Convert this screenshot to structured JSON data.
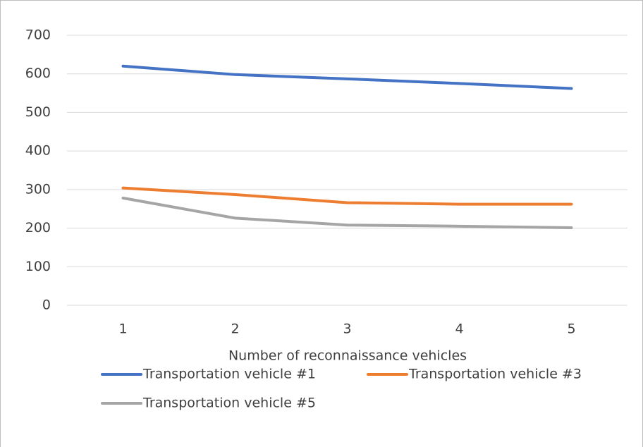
{
  "chart_data": {
    "type": "line",
    "x_label": "Number of reconnaissance vehicles",
    "categories": [
      "1",
      "2",
      "3",
      "4",
      "5"
    ],
    "series": [
      {
        "name": "Transportation vehicle #1",
        "color": "#4472c4",
        "values": [
          620,
          598,
          587,
          575,
          562
        ]
      },
      {
        "name": "Transportation vehicle #3",
        "color": "#ed7d31",
        "values": [
          304,
          287,
          266,
          262,
          262
        ]
      },
      {
        "name": "Transportation vehicle #5",
        "color": "#a5a5a5",
        "values": [
          278,
          226,
          208,
          205,
          201
        ]
      }
    ],
    "ylim": [
      0,
      700
    ],
    "yticks": [
      0,
      100,
      200,
      300,
      400,
      500,
      600,
      700
    ],
    "grid": true,
    "legend": "bottom"
  }
}
